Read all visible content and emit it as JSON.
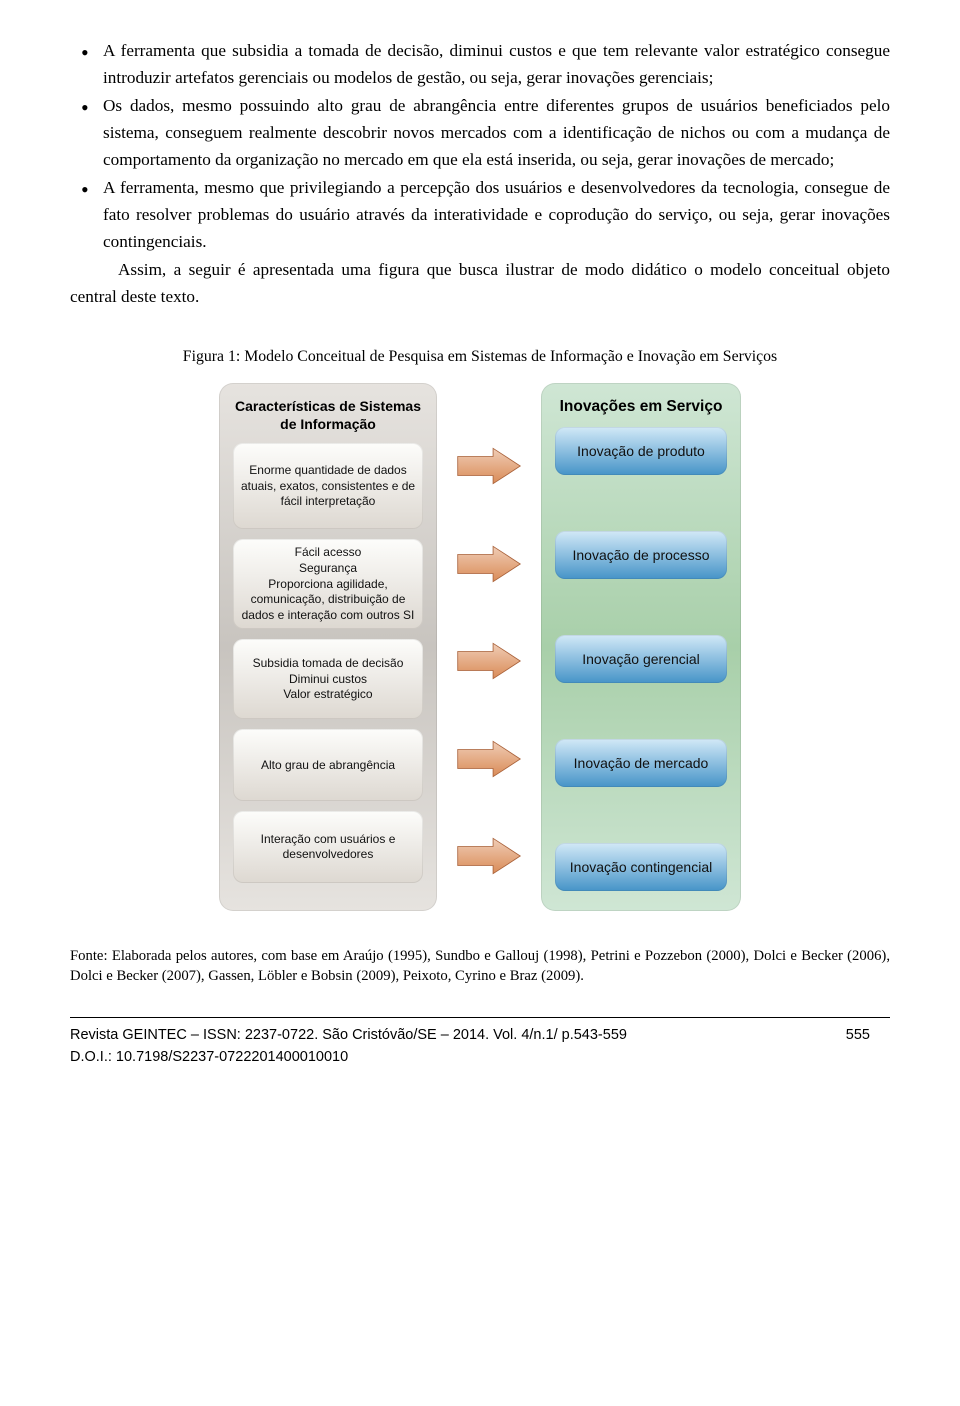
{
  "bullets": [
    "A ferramenta que subsidia a tomada de decisão, diminui custos e que tem relevante valor estratégico consegue introduzir artefatos gerenciais ou modelos de gestão, ou seja, gerar inovações gerenciais;",
    "Os dados, mesmo possuindo alto grau de abrangência entre diferentes grupos de usuários beneficiados pelo sistema, conseguem realmente descobrir novos mercados com a identificação de nichos ou com a mudança de comportamento da organização no mercado em que ela está inserida, ou seja, gerar inovações de mercado;",
    "A ferramenta, mesmo que privilegiando a percepção dos usuários e desenvolvedores da tecnologia, consegue de fato resolver problemas do usuário através da interatividade e coprodução do serviço, ou seja, gerar inovações contingenciais."
  ],
  "paragraph": "Assim, a seguir é apresentada uma figura que busca ilustrar de modo didático o modelo conceitual objeto central deste texto.",
  "figure": {
    "caption": "Figura 1: Modelo Conceitual de Pesquisa em Sistemas de Informação e Inovação em Serviços",
    "left_panel": {
      "title": "Características de Sistemas de Informação",
      "bg_gradient": [
        "#e6e3df",
        "#c8c4bf"
      ],
      "item_bg_gradient": [
        "#fdfdfb",
        "#ddd8d1"
      ],
      "items": [
        "Enorme quantidade de dados atuais, exatos, consistentes e de fácil interpretação",
        "Fácil acesso\nSegurança\nProporciona agilidade, comunicação, distribuição de dados e interação com outros SI",
        "Subsidia tomada de decisão\nDiminui custos\nValor estratégico",
        "Alto grau de abrangência",
        "Interação com usuários e desenvolvedores"
      ]
    },
    "right_panel": {
      "title": "Inovações em Serviço",
      "bg_gradient": [
        "#cfe6d4",
        "#a8cfa9"
      ],
      "item_bg_gradient": [
        "#d2e9f7",
        "#4694c8"
      ],
      "items": [
        "Inovação de produto",
        "Inovação de processo",
        "Inovação gerencial",
        "Inovação de mercado",
        "Inovação contingencial"
      ]
    },
    "arrow": {
      "fill_gradient": [
        "#f0cdb6",
        "#d98b57"
      ],
      "stroke": "#a86038"
    }
  },
  "fonte": "Fonte: Elaborada pelos autores, com base em Araújo (1995), Sundbo e Gallouj (1998), Petrini e Pozzebon (2000), Dolci e Becker (2006), Dolci e Becker (2007), Gassen, Löbler e Bobsin (2009), Peixoto, Cyrino e Braz (2009).",
  "footer": {
    "line1": "Revista GEINTEC – ISSN: 2237-0722. São Cristóvão/SE – 2014. Vol. 4/n.1/ p.543-559",
    "page": "555",
    "doi": "D.O.I.: 10.7198/S2237-0722201400010010"
  }
}
